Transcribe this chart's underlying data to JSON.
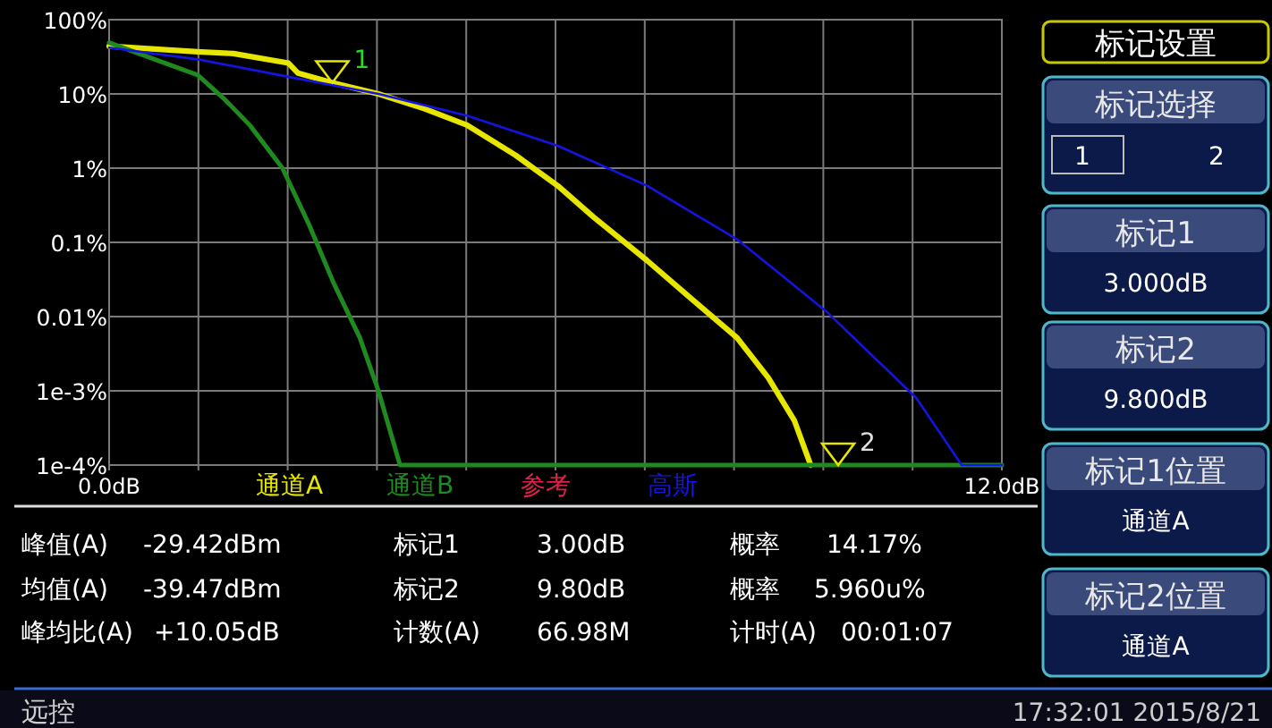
{
  "chart_data": {
    "type": "line",
    "xlim": [
      0,
      12
    ],
    "xticks": [
      {
        "value": 0,
        "label": "0.0dB"
      },
      {
        "value": 1.2,
        "label": null
      },
      {
        "value": 2.4,
        "label": null
      },
      {
        "value": 3.6,
        "label": null
      },
      {
        "value": 4.8,
        "label": null
      },
      {
        "value": 6,
        "label": null
      },
      {
        "value": 7.2,
        "label": null
      },
      {
        "value": 8.4,
        "label": null
      },
      {
        "value": 9.6,
        "label": null
      },
      {
        "value": 10.8,
        "label": null
      },
      {
        "value": 12,
        "label": "12.0dB"
      }
    ],
    "ylim": [
      0.0001,
      100
    ],
    "yticks": [
      {
        "value": 0.0001,
        "label": "1e-4%"
      },
      {
        "value": 0.001,
        "label": "1e-3%"
      },
      {
        "value": 0.01,
        "label": "0.01%"
      },
      {
        "value": 0.1,
        "label": "0.1%"
      },
      {
        "value": 1,
        "label": "1%"
      },
      {
        "value": 10,
        "label": "10%"
      },
      {
        "value": 100,
        "label": "100%"
      }
    ],
    "log": "y",
    "grid": true,
    "legend": "bottom",
    "series": [
      {
        "name": "通道A",
        "color": "#e6e600",
        "x": [
          0,
          1.19,
          1.67,
          2.41,
          2.54,
          3.0,
          3.62,
          4.24,
          4.81,
          5.46,
          6.03,
          6.51,
          7.23,
          7.81,
          8.44,
          8.86,
          9.21,
          9.43
        ],
        "values": [
          44,
          37,
          35,
          26,
          19,
          14.17,
          10,
          6.3,
          3.8,
          1.5,
          0.58,
          0.22,
          0.057,
          0.018,
          0.0052,
          0.0015,
          0.0004,
          0.0001
        ]
      },
      {
        "name": "通道B",
        "color": "#1f8a1f",
        "x": [
          0,
          0.58,
          1.19,
          1.54,
          1.89,
          2.33,
          2.68,
          3.02,
          3.37,
          3.62,
          3.91,
          12
        ],
        "values": [
          49,
          30,
          18,
          8.7,
          3.8,
          1.0,
          0.18,
          0.028,
          0.0052,
          0.001,
          0.0001,
          0.0001
        ]
      },
      {
        "name": "参考",
        "color": "#e0204a"
      },
      {
        "name": "高斯",
        "color": "#1414e0",
        "x": [
          0,
          1.21,
          2.41,
          3.62,
          4.81,
          6.03,
          7.23,
          8.44,
          9.63,
          10.85,
          11.46,
          12
        ],
        "values": [
          42,
          29,
          17,
          10,
          5.1,
          2.0,
          0.58,
          0.11,
          0.012,
          0.0008,
          0.0001,
          0.0001
        ]
      }
    ],
    "annotations": [
      {
        "text": "1",
        "x": 3.0,
        "y": 14.17
      },
      {
        "text": "2",
        "x": 9.8,
        "y": 0.0001
      },
      "峰值(A)",
      "-29.42dBm",
      "标记1",
      "3.00dB",
      "概率",
      "14.17%",
      "均值(A)",
      "-39.47dBm",
      "标记2",
      "9.80dB",
      "概率",
      "5.960u%",
      "峰均比(A)",
      "+10.05dB",
      "计数(A)",
      "66.98M",
      "计时(A)",
      "00:01:07",
      "标记设置",
      "标记选择",
      "1",
      "2",
      "标记1",
      "3.000dB",
      "标记2",
      "9.800dB",
      "标记1位置",
      "通道A",
      "标记2位置",
      "通道A",
      "远控",
      "17:32:01  2015/8/21"
    ]
  }
}
